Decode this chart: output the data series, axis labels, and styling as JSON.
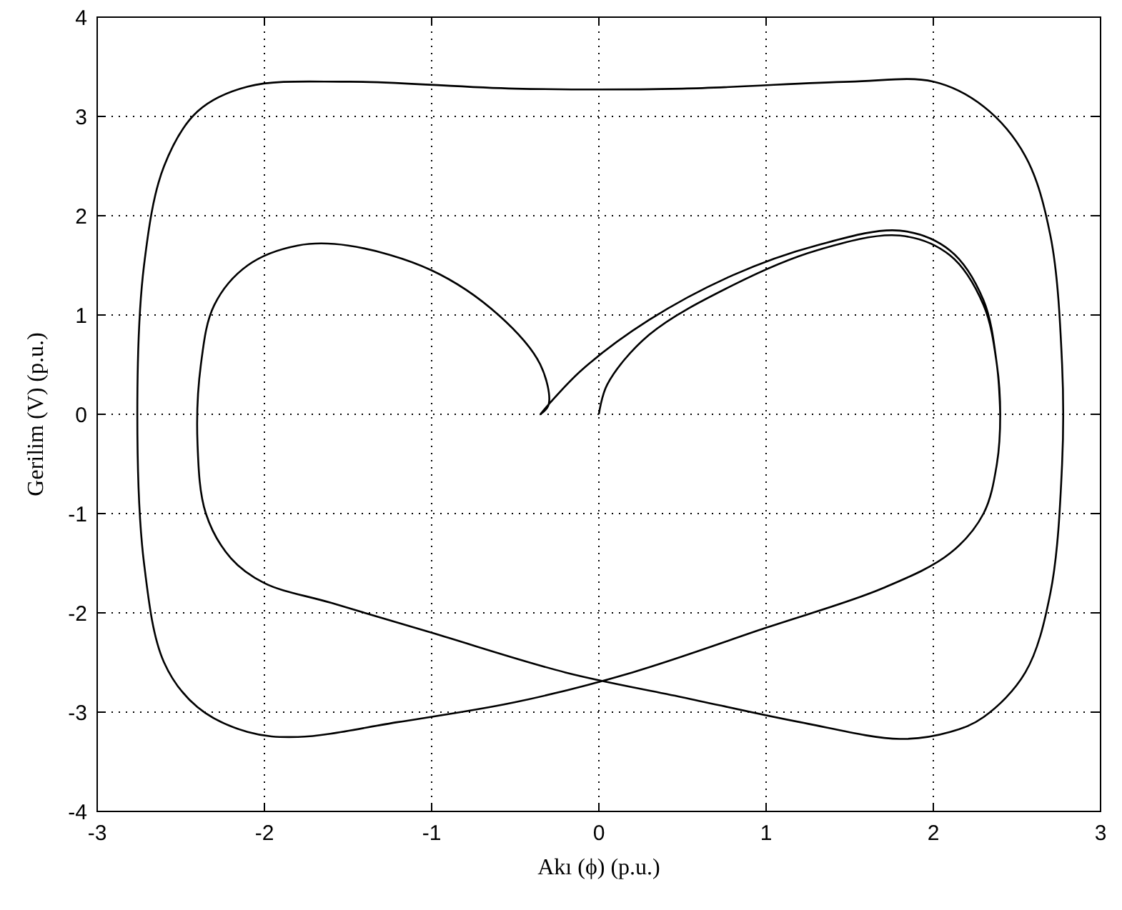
{
  "chart_data": {
    "type": "line",
    "xlabel": "Akı (ϕ) (p.u.)",
    "ylabel": "Gerilim (V) (p.u.)",
    "xlim": [
      -3,
      3
    ],
    "ylim": [
      -4,
      4
    ],
    "xticks": [
      -3,
      -2,
      -1,
      0,
      1,
      2,
      3
    ],
    "yticks": [
      -4,
      -3,
      -2,
      -1,
      0,
      1,
      2,
      3,
      4
    ],
    "grid": true,
    "line_style": "solid",
    "marker": "none",
    "series": [
      {
        "color": "#000000",
        "x": [
          0,
          0.05,
          0.3,
          0.8,
          1.3,
          1.8,
          2.1,
          2.3,
          2.38,
          2.4,
          2.38,
          2.3,
          2.1,
          1.7,
          1,
          0.2,
          -0.5,
          -1.2,
          -1.8,
          -2.1,
          -2.4,
          -2.6,
          -2.72,
          -2.76,
          -2.72,
          -2.6,
          -2.4,
          -2.1,
          -1.5,
          -0.5,
          0.5,
          1.5,
          2,
          2.3,
          2.55,
          2.7,
          2.77,
          2.77,
          2.7,
          2.55,
          2.3,
          2.1,
          1.8,
          1.2,
          0.5,
          -0.2,
          -1,
          -1.6,
          -2,
          -2.2,
          -2.35,
          -2.4,
          -2.38,
          -2.3,
          -2.1,
          -1.8,
          -1.5,
          -1,
          -0.6,
          -0.35,
          -0.3,
          -0.35,
          -0.3,
          -0.1,
          0.3,
          0.8,
          1.3,
          1.8,
          2.1,
          2.3,
          2.38,
          2.4
        ],
        "values": [
          0,
          0.3,
          0.8,
          1.3,
          1.65,
          1.8,
          1.6,
          1.1,
          0.5,
          0,
          -0.5,
          -1,
          -1.4,
          -1.75,
          -2.15,
          -2.6,
          -2.9,
          -3.1,
          -3.25,
          -3.2,
          -2.95,
          -2.5,
          -1.5,
          0,
          1.5,
          2.5,
          3.05,
          3.3,
          3.35,
          3.28,
          3.28,
          3.35,
          3.35,
          3.1,
          2.6,
          1.8,
          0.5,
          -0.5,
          -1.8,
          -2.6,
          -3.05,
          -3.2,
          -3.27,
          -3.1,
          -2.85,
          -2.6,
          -2.2,
          -1.9,
          -1.7,
          -1.45,
          -1,
          -0.3,
          0.5,
          1.1,
          1.5,
          1.7,
          1.7,
          1.45,
          1,
          0.5,
          0.1,
          0,
          0.1,
          0.45,
          0.95,
          1.4,
          1.7,
          1.85,
          1.65,
          1.15,
          0.5,
          0
        ]
      }
    ]
  }
}
